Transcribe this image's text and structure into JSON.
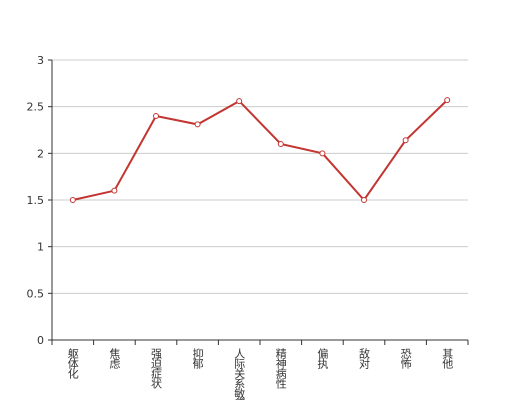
{
  "chart_data": {
    "type": "line",
    "categories": [
      "躯体化",
      "焦虑",
      "强迫症状",
      "抑郁",
      "人际关系敏感",
      "精神病性",
      "偏执",
      "敌对",
      "恐怖",
      "其他"
    ],
    "series": [
      {
        "color": "#c23531",
        "values": [
          1.5,
          1.6,
          2.4,
          2.31,
          2.56,
          2.1,
          2.0,
          1.5,
          2.14,
          2.57
        ]
      }
    ],
    "ylim": [
      0,
      3
    ],
    "yticks": [
      0,
      0.5,
      1,
      1.5,
      2,
      2.5,
      3
    ],
    "grid": true
  }
}
